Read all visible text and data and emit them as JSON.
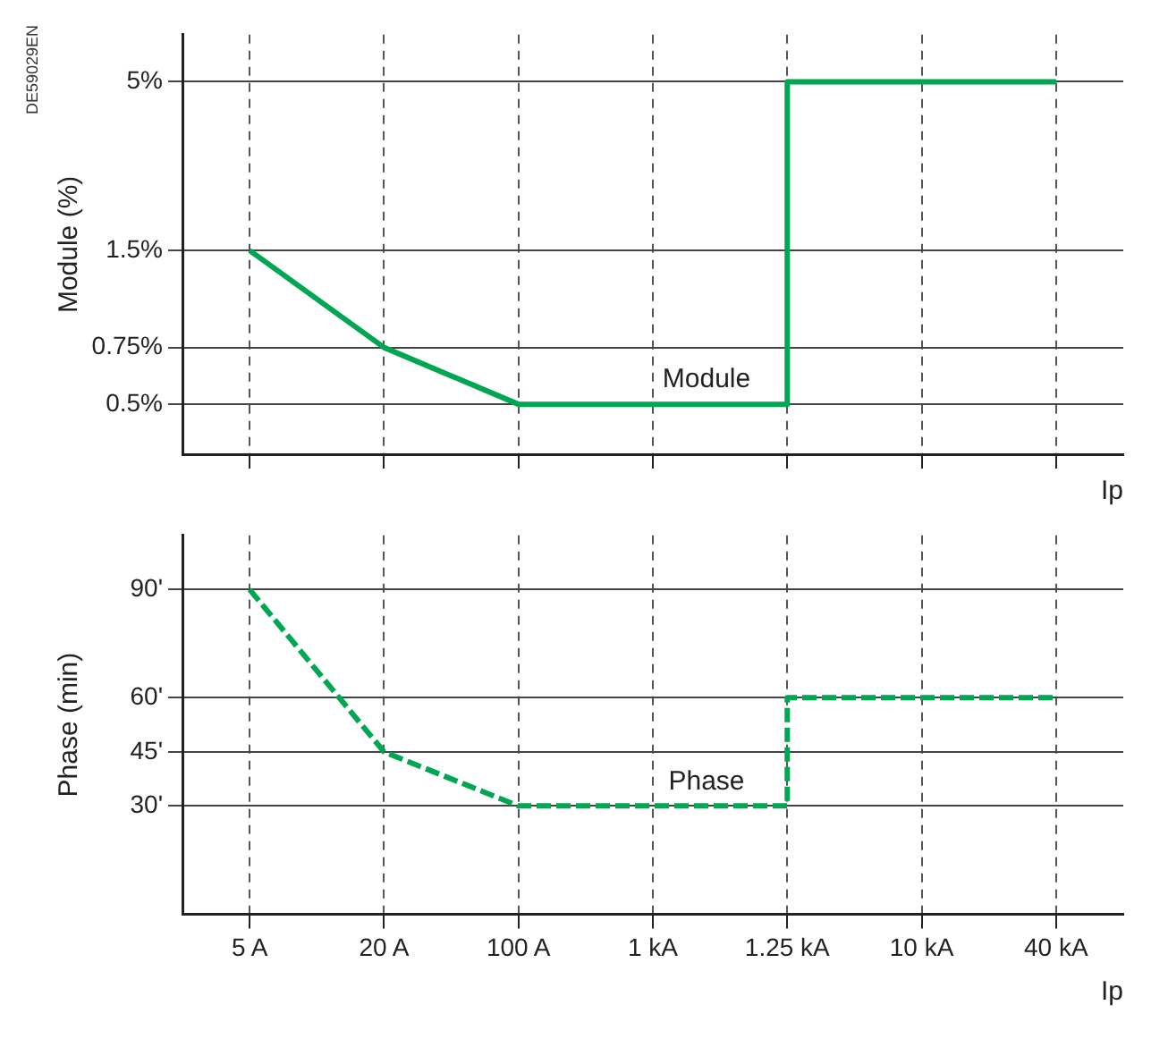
{
  "chart_data": [
    {
      "type": "line",
      "ylabel": "Module (%)",
      "xlabel": "Ip",
      "annotations": [
        "DE59029EN"
      ],
      "categories": [
        "5 A",
        "20 A",
        "100 A",
        "1 kA",
        "1.25 kA",
        "10 kA",
        "40 kA"
      ],
      "series": [
        {
          "name": "Module",
          "color": "#00a651",
          "x": [
            "5 A",
            "20 A",
            "100 A",
            "1.25 kA",
            "1.25 kA",
            "40 kA"
          ],
          "values": [
            1.5,
            0.75,
            0.5,
            0.5,
            5,
            5
          ]
        }
      ],
      "log": "y",
      "ylim": [
        0.35,
        7
      ],
      "yticks": [
        {
          "value": 0.5,
          "label": "0.5%"
        },
        {
          "value": 0.75,
          "label": "0.75%"
        },
        {
          "value": 1.5,
          "label": "1.5%"
        },
        {
          "value": 5,
          "label": "5%"
        }
      ],
      "grid": true,
      "line_style": "solid",
      "marker": "none",
      "tick_labels": "y",
      "legend": false
    },
    {
      "type": "line",
      "ylabel": "Phase (min)",
      "xlabel": "Ip",
      "categories": [
        "5 A",
        "20 A",
        "100 A",
        "1 kA",
        "1.25 kA",
        "10 kA",
        "40 kA"
      ],
      "series": [
        {
          "name": "Phase",
          "color": "#00a651",
          "x": [
            "5 A",
            "20 A",
            "100 A",
            "1.25 kA",
            "1.25 kA",
            "40 kA"
          ],
          "values": [
            90,
            45,
            30,
            30,
            60,
            60
          ]
        }
      ],
      "ylim": [
        0,
        105
      ],
      "yticks": [
        {
          "value": 30,
          "label": "30'"
        },
        {
          "value": 45,
          "label": "45'"
        },
        {
          "value": 60,
          "label": "60'"
        },
        {
          "value": 90,
          "label": "90'"
        }
      ],
      "grid": true,
      "line_style": "dashed",
      "marker": "none",
      "legend": false
    }
  ]
}
